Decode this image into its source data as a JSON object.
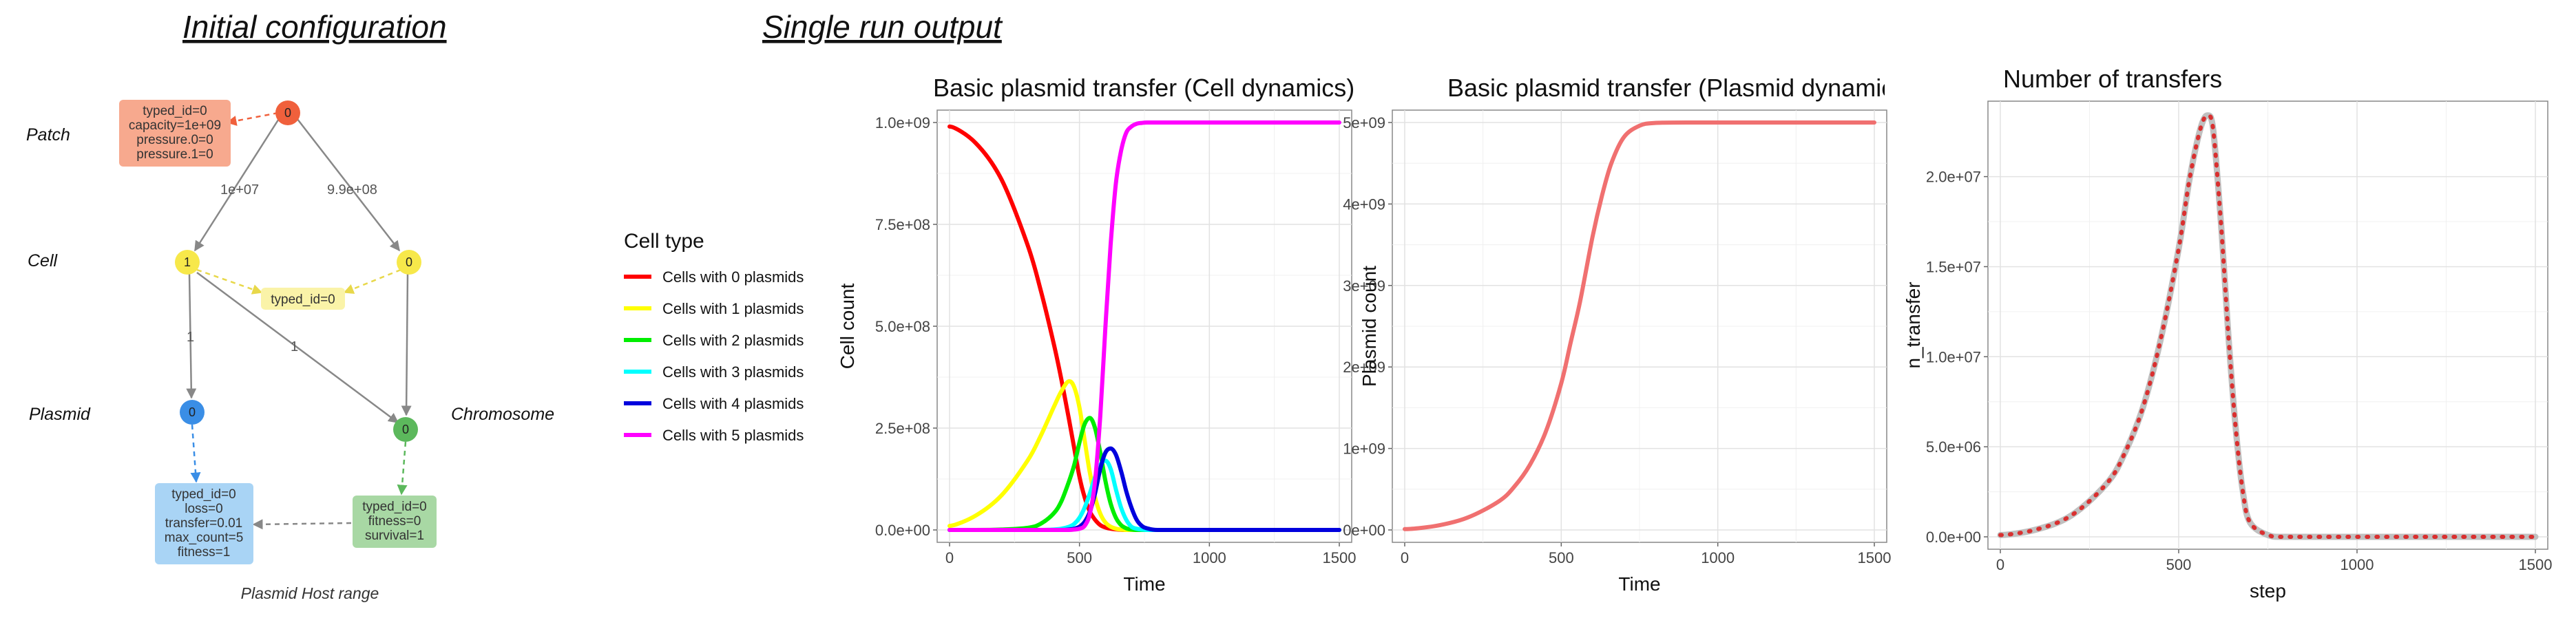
{
  "sections": {
    "initial_title": "Initial configuration",
    "single_run_title": "Single run output"
  },
  "diagram": {
    "row_labels": {
      "patch": "Patch",
      "cell": "Cell",
      "plasmid": "Plasmid",
      "chromosome": "Chromosome"
    },
    "nodes": {
      "patch": "0",
      "cell_a": "1",
      "cell_b": "0",
      "plasmid": "0",
      "chromosome": "0"
    },
    "node_colors": {
      "patch": "#f0603c",
      "cell": "#f7e84a",
      "plasmid": "#3a8ee6",
      "chromosome": "#5cb85c"
    },
    "edges": {
      "patch_cell_a": "1e+07",
      "patch_cell_b": "9.9e+08",
      "cell_a_plasmid": "1",
      "cell_a_chromosome": "1"
    },
    "boxes": {
      "patch": [
        "typed_id=0",
        "capacity=1e+09",
        "pressure.0=0",
        "pressure.1=0"
      ],
      "cell": [
        "typed_id=0"
      ],
      "plasmid": [
        "typed_id=0",
        "loss=0",
        "transfer=0.01",
        "max_count=5",
        "fitness=1"
      ],
      "chromosome": [
        "typed_id=0",
        "fitness=0",
        "survival=1"
      ]
    },
    "box_colors": {
      "patch": "#f7a98e",
      "cell": "#faf3a8",
      "plasmid": "#a9d4f5",
      "chromosome": "#a8d8a4"
    },
    "caption": "Plasmid Host range"
  },
  "legend": {
    "title": "Cell type",
    "items": [
      {
        "label": "Cells with 0 plasmids",
        "color": "#ff0000"
      },
      {
        "label": "Cells with 1 plasmids",
        "color": "#ffff00"
      },
      {
        "label": "Cells with 2 plasmids",
        "color": "#00ee00"
      },
      {
        "label": "Cells with 3 plasmids",
        "color": "#00ffff"
      },
      {
        "label": "Cells with 4 plasmids",
        "color": "#0000dd"
      },
      {
        "label": "Cells with 5 plasmids",
        "color": "#ff00ff"
      }
    ]
  },
  "chart_data": [
    {
      "type": "line",
      "title": "Basic plasmid transfer (Cell dynamics)",
      "xlabel": "Time",
      "ylabel": "Cell count",
      "xlim": [
        0,
        1500
      ],
      "ylim": [
        0,
        1000000000
      ],
      "xticks": [
        0,
        500,
        1000,
        1500
      ],
      "xtick_labels": [
        "0",
        "500",
        "1000",
        "1500"
      ],
      "yticks": [
        0,
        250000000,
        500000000,
        750000000,
        1000000000
      ],
      "ytick_labels": [
        "0.0e+00",
        "2.5e+08",
        "5.0e+08",
        "7.5e+08",
        "1.0e+09"
      ],
      "grid": true,
      "x": [
        0,
        100,
        200,
        300,
        350,
        400,
        430,
        460,
        480,
        500,
        520,
        540,
        560,
        580,
        600,
        620,
        640,
        660,
        680,
        700,
        720,
        740,
        760,
        800,
        900,
        1000,
        1200,
        1500
      ],
      "series": [
        {
          "name": "Cells with 0 plasmids",
          "color": "#ff0000",
          "values": [
            990000000,
            950000000,
            860000000,
            700000000,
            590000000,
            460000000,
            370000000,
            270000000,
            200000000,
            130000000,
            80000000,
            45000000,
            25000000,
            12000000,
            6000000,
            3000000,
            1500000,
            500000,
            0,
            0,
            0,
            0,
            0,
            0,
            0,
            0,
            0,
            0
          ]
        },
        {
          "name": "Cells with 1 plasmids",
          "color": "#ffff00",
          "values": [
            10000000,
            35000000,
            85000000,
            170000000,
            230000000,
            300000000,
            340000000,
            365000000,
            350000000,
            300000000,
            220000000,
            140000000,
            80000000,
            40000000,
            18000000,
            8000000,
            3000000,
            1000000,
            0,
            0,
            0,
            0,
            0,
            0,
            0,
            0,
            0,
            0
          ]
        },
        {
          "name": "Cells with 2 plasmids",
          "color": "#00ee00",
          "values": [
            0,
            0,
            1000000,
            5000000,
            15000000,
            40000000,
            70000000,
            120000000,
            160000000,
            215000000,
            260000000,
            275000000,
            250000000,
            190000000,
            120000000,
            65000000,
            30000000,
            12000000,
            4000000,
            1000000,
            0,
            0,
            0,
            0,
            0,
            0,
            0,
            0
          ]
        },
        {
          "name": "Cells with 3 plasmids",
          "color": "#00ffff",
          "values": [
            0,
            0,
            0,
            0,
            0,
            1000000,
            3000000,
            8000000,
            15000000,
            30000000,
            55000000,
            90000000,
            130000000,
            160000000,
            170000000,
            150000000,
            100000000,
            55000000,
            25000000,
            8000000,
            3000000,
            1000000,
            0,
            0,
            0,
            0,
            0,
            0
          ]
        },
        {
          "name": "Cells with 4 plasmids",
          "color": "#0000dd",
          "values": [
            0,
            0,
            0,
            0,
            0,
            0,
            0,
            1000000,
            3000000,
            8000000,
            20000000,
            45000000,
            90000000,
            150000000,
            190000000,
            200000000,
            185000000,
            145000000,
            95000000,
            55000000,
            25000000,
            10000000,
            4000000,
            0,
            0,
            0,
            0,
            0
          ]
        },
        {
          "name": "Cells with 5 plasmids",
          "color": "#ff00ff",
          "values": [
            0,
            0,
            0,
            0,
            0,
            0,
            0,
            0,
            1000000,
            3000000,
            10000000,
            40000000,
            120000000,
            280000000,
            500000000,
            700000000,
            850000000,
            930000000,
            975000000,
            990000000,
            997000000,
            999000000,
            1000000000,
            1000000000,
            1000000000,
            1000000000,
            1000000000,
            1000000000
          ]
        }
      ]
    },
    {
      "type": "line",
      "title": "Basic plasmid transfer (Plasmid dynamics)",
      "xlabel": "Time",
      "ylabel": "Plasmid count",
      "xlim": [
        0,
        1500
      ],
      "ylim": [
        0,
        5000000000
      ],
      "xticks": [
        0,
        500,
        1000,
        1500
      ],
      "xtick_labels": [
        "0",
        "500",
        "1000",
        "1500"
      ],
      "yticks": [
        0,
        1000000000,
        2000000000,
        3000000000,
        4000000000,
        5000000000
      ],
      "ytick_labels": [
        "0e+00",
        "1e+09",
        "2e+09",
        "3e+09",
        "4e+09",
        "5e+09"
      ],
      "grid": true,
      "x": [
        0,
        100,
        200,
        300,
        350,
        400,
        450,
        500,
        530,
        560,
        600,
        630,
        660,
        700,
        750,
        800,
        900,
        1000,
        1200,
        1500
      ],
      "series": [
        {
          "name": "Plasmid count",
          "color": "#f07070",
          "values": [
            10000000,
            50000000,
            150000000,
            350000000,
            530000000,
            800000000,
            1200000000,
            1800000000,
            2300000000,
            2800000000,
            3600000000,
            4100000000,
            4500000000,
            4820000000,
            4960000000,
            4995000000,
            5000000000,
            5000000000,
            5000000000,
            5000000000
          ]
        }
      ]
    },
    {
      "type": "line",
      "title": "Number of transfers",
      "xlabel": "step",
      "ylabel": "n_transfer",
      "xlim": [
        0,
        1500
      ],
      "ylim": [
        0,
        23500000
      ],
      "xticks": [
        0,
        500,
        1000,
        1500
      ],
      "xtick_labels": [
        "0",
        "500",
        "1000",
        "1500"
      ],
      "yticks": [
        0,
        5000000,
        10000000,
        15000000,
        20000000
      ],
      "ytick_labels": [
        "0.0e+00",
        "5.0e+06",
        "1.0e+07",
        "1.5e+07",
        "2.0e+07"
      ],
      "grid": true,
      "x": [
        0,
        100,
        200,
        300,
        350,
        400,
        450,
        500,
        530,
        560,
        580,
        590,
        600,
        620,
        640,
        660,
        680,
        700,
        750,
        800,
        1000,
        1500
      ],
      "series": [
        {
          "name": "n_transfer",
          "color": "#c0c0c0",
          "values": [
            100000,
            400000,
            1200000,
            3000000,
            4700000,
            7200000,
            11000000,
            16000000,
            19800000,
            22600000,
            23400000,
            23300000,
            22000000,
            17000000,
            11000000,
            6000000,
            2500000,
            800000,
            100000,
            0,
            0,
            0
          ]
        },
        {
          "name": "n_transfer",
          "color": "#d93030",
          "dashed": true,
          "values": [
            100000,
            400000,
            1200000,
            3000000,
            4700000,
            7200000,
            11000000,
            16000000,
            19800000,
            22600000,
            23400000,
            23300000,
            22000000,
            17000000,
            11000000,
            6000000,
            2500000,
            800000,
            100000,
            0,
            0,
            0
          ]
        }
      ]
    }
  ]
}
